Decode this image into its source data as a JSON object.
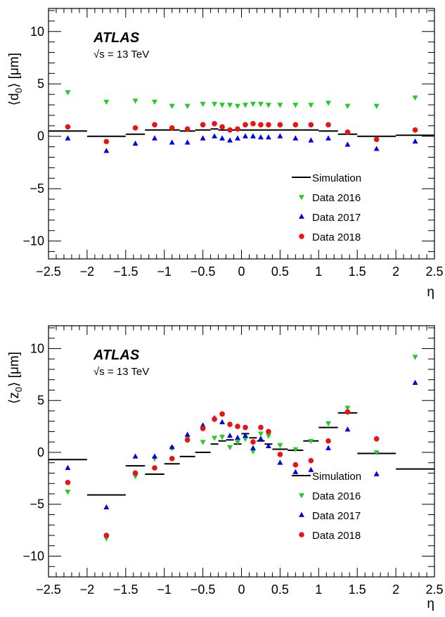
{
  "chart_data": [
    {
      "type": "scatter",
      "xlabel": "η",
      "ylabel_main": "⟨d",
      "ylabel_sub": "0",
      "ylabel_tail": "⟩ [μm]",
      "xlim": [
        -2.5,
        2.5
      ],
      "ylim": [
        -11.7,
        12.2
      ],
      "xticks": [
        -2.5,
        -2,
        -1.5,
        -1,
        -0.5,
        0,
        0.5,
        1,
        1.5,
        2,
        2.5
      ],
      "xtick_labels": [
        "−2.5",
        "−2",
        "−1.5",
        "−1",
        "−0.5",
        "0",
        "0.5",
        "1",
        "1.5",
        "2",
        "2.5"
      ],
      "yticks": [
        -10,
        -5,
        0,
        5,
        10
      ],
      "ytick_labels": [
        "−10",
        "−5",
        "0",
        "5",
        "10"
      ],
      "atlas_label": "ATLAS",
      "energy_label": "√s = 13 TeV",
      "legend_position": "bottom-right",
      "legend": [
        "Simulation",
        "Data 2016",
        "Data 2017",
        "Data 2018"
      ],
      "simulation": [
        {
          "x1": -2.5,
          "x2": -2.0,
          "y": 0.5
        },
        {
          "x1": -2.0,
          "x2": -1.5,
          "y": 0.0
        },
        {
          "x1": -1.5,
          "x2": -1.25,
          "y": 0.2
        },
        {
          "x1": -1.25,
          "x2": -1.0,
          "y": 0.6
        },
        {
          "x1": -1.0,
          "x2": -0.8,
          "y": 0.6
        },
        {
          "x1": -0.8,
          "x2": -0.6,
          "y": 0.5
        },
        {
          "x1": -0.6,
          "x2": -0.4,
          "y": 0.6
        },
        {
          "x1": -0.4,
          "x2": -0.3,
          "y": 0.7
        },
        {
          "x1": -0.3,
          "x2": -0.2,
          "y": 0.6
        },
        {
          "x1": -0.2,
          "x2": -0.1,
          "y": 0.6
        },
        {
          "x1": -0.1,
          "x2": 0.0,
          "y": 0.6
        },
        {
          "x1": 0.0,
          "x2": 0.1,
          "y": 0.6
        },
        {
          "x1": 0.1,
          "x2": 0.2,
          "y": 0.6
        },
        {
          "x1": 0.2,
          "x2": 0.3,
          "y": 0.6
        },
        {
          "x1": 0.3,
          "x2": 0.4,
          "y": 0.6
        },
        {
          "x1": 0.4,
          "x2": 0.6,
          "y": 0.6
        },
        {
          "x1": 0.6,
          "x2": 0.8,
          "y": 0.6
        },
        {
          "x1": 0.8,
          "x2": 1.0,
          "y": 0.6
        },
        {
          "x1": 1.0,
          "x2": 1.25,
          "y": 0.5
        },
        {
          "x1": 1.25,
          "x2": 1.5,
          "y": 0.2
        },
        {
          "x1": 1.5,
          "x2": 2.0,
          "y": 0.0
        },
        {
          "x1": 2.0,
          "x2": 2.5,
          "y": 0.1
        }
      ],
      "series": [
        {
          "name": "Data 2016",
          "marker": "triangle-down",
          "color": "#22cc22",
          "x": [
            -2.25,
            -1.75,
            -1.375,
            -1.125,
            -0.9,
            -0.7,
            -0.5,
            -0.35,
            -0.25,
            -0.15,
            -0.05,
            0.05,
            0.15,
            0.25,
            0.35,
            0.5,
            0.7,
            0.9,
            1.125,
            1.375,
            1.75,
            2.25
          ],
          "y": [
            4.2,
            3.3,
            3.4,
            3.3,
            2.9,
            2.9,
            3.1,
            3.1,
            3.0,
            3.0,
            2.9,
            3.0,
            3.1,
            3.1,
            3.0,
            3.0,
            3.0,
            3.0,
            3.2,
            2.9,
            2.9,
            3.7
          ]
        },
        {
          "name": "Data 2017",
          "marker": "triangle-up",
          "color": "#0000ee",
          "x": [
            -2.25,
            -1.75,
            -1.375,
            -1.125,
            -0.9,
            -0.7,
            -0.5,
            -0.35,
            -0.25,
            -0.15,
            -0.05,
            0.05,
            0.15,
            0.25,
            0.35,
            0.5,
            0.7,
            0.9,
            1.125,
            1.375,
            1.75,
            2.25
          ],
          "y": [
            -0.2,
            -1.4,
            -0.7,
            -0.2,
            -0.6,
            -0.6,
            -0.2,
            0.0,
            -0.2,
            -0.4,
            -0.2,
            0.0,
            0.0,
            -0.1,
            -0.1,
            0.0,
            -0.2,
            -0.4,
            -0.2,
            -0.8,
            -1.2,
            -0.5
          ]
        },
        {
          "name": "Data 2018",
          "marker": "circle",
          "color": "#ee1111",
          "x": [
            -2.25,
            -1.75,
            -1.375,
            -1.125,
            -0.9,
            -0.7,
            -0.5,
            -0.35,
            -0.25,
            -0.15,
            -0.05,
            0.05,
            0.15,
            0.25,
            0.35,
            0.5,
            0.7,
            0.9,
            1.125,
            1.375,
            1.75,
            2.25
          ],
          "y": [
            0.9,
            -0.5,
            0.8,
            1.1,
            0.8,
            0.7,
            1.1,
            1.2,
            0.9,
            0.6,
            0.7,
            1.1,
            1.2,
            1.1,
            1.1,
            1.1,
            1.1,
            1.1,
            1.1,
            0.4,
            -0.3,
            0.6
          ]
        }
      ]
    },
    {
      "type": "scatter",
      "xlabel": "η",
      "ylabel_main": "⟨z",
      "ylabel_sub": "0",
      "ylabel_tail": "⟩ [μm]",
      "xlim": [
        -2.5,
        2.5
      ],
      "ylim": [
        -12.0,
        12.2
      ],
      "xticks": [
        -2.5,
        -2,
        -1.5,
        -1,
        -0.5,
        0,
        0.5,
        1,
        1.5,
        2,
        2.5
      ],
      "xtick_labels": [
        "−2.5",
        "−2",
        "−1.5",
        "−1",
        "−0.5",
        "0",
        "0.5",
        "1",
        "1.5",
        "2",
        "2.5"
      ],
      "yticks": [
        -10,
        -5,
        0,
        5,
        10
      ],
      "ytick_labels": [
        "−10",
        "−5",
        "0",
        "5",
        "10"
      ],
      "atlas_label": "ATLAS",
      "energy_label": "√s = 13 TeV",
      "legend_position": "bottom-right",
      "legend": [
        "Simulation",
        "Data 2016",
        "Data 2017",
        "Data 2018"
      ],
      "simulation": [
        {
          "x1": -2.5,
          "x2": -2.0,
          "y": -0.7
        },
        {
          "x1": -2.0,
          "x2": -1.5,
          "y": -4.1
        },
        {
          "x1": -1.5,
          "x2": -1.25,
          "y": -1.3
        },
        {
          "x1": -1.25,
          "x2": -1.0,
          "y": -2.1
        },
        {
          "x1": -1.0,
          "x2": -0.8,
          "y": -1.1
        },
        {
          "x1": -0.8,
          "x2": -0.6,
          "y": -0.4
        },
        {
          "x1": -0.6,
          "x2": -0.4,
          "y": 0.0
        },
        {
          "x1": -0.4,
          "x2": -0.3,
          "y": 0.8
        },
        {
          "x1": -0.3,
          "x2": -0.2,
          "y": 1.1
        },
        {
          "x1": -0.2,
          "x2": -0.1,
          "y": 1.2
        },
        {
          "x1": -0.1,
          "x2": 0.0,
          "y": 0.8
        },
        {
          "x1": 0.0,
          "x2": 0.1,
          "y": 1.8
        },
        {
          "x1": 0.1,
          "x2": 0.2,
          "y": 1.4
        },
        {
          "x1": 0.2,
          "x2": 0.3,
          "y": 1.1
        },
        {
          "x1": 0.3,
          "x2": 0.4,
          "y": 0.8
        },
        {
          "x1": 0.4,
          "x2": 0.6,
          "y": 0.3
        },
        {
          "x1": 0.6,
          "x2": 0.8,
          "y": 0.2
        },
        {
          "x1": 0.8,
          "x2": 1.0,
          "y": 1.1
        },
        {
          "x1": 1.0,
          "x2": 1.25,
          "y": 2.4
        },
        {
          "x1": 1.25,
          "x2": 1.5,
          "y": 3.8
        },
        {
          "x1": 1.5,
          "x2": 2.0,
          "y": -0.1
        },
        {
          "x1": 2.0,
          "x2": 2.5,
          "y": -1.6
        }
      ],
      "series": [
        {
          "name": "Data 2016",
          "marker": "triangle-down",
          "color": "#22cc22",
          "x": [
            -2.25,
            -1.75,
            -1.375,
            -1.125,
            -0.9,
            -0.7,
            -0.5,
            -0.35,
            -0.25,
            -0.15,
            -0.05,
            0.05,
            0.15,
            0.25,
            0.35,
            0.5,
            0.7,
            0.9,
            1.125,
            1.375,
            1.75,
            2.25
          ],
          "y": [
            -3.8,
            -8.3,
            -2.3,
            -0.6,
            0.4,
            1.4,
            1.0,
            1.4,
            1.5,
            0.5,
            1.0,
            1.3,
            0.1,
            1.8,
            1.6,
            0.7,
            0.3,
            1.1,
            2.8,
            4.3,
            0.0,
            9.2
          ]
        },
        {
          "name": "Data 2017",
          "marker": "triangle-up",
          "color": "#0000ee",
          "x": [
            -2.25,
            -1.75,
            -1.375,
            -1.125,
            -0.9,
            -0.7,
            -0.5,
            -0.35,
            -0.25,
            -0.15,
            -0.05,
            0.05,
            0.15,
            0.25,
            0.35,
            0.5,
            0.7,
            0.9,
            1.125,
            1.375,
            1.75,
            2.25
          ],
          "y": [
            -1.5,
            -5.3,
            -0.4,
            -0.4,
            0.5,
            1.7,
            2.6,
            3.3,
            2.9,
            1.6,
            1.4,
            1.6,
            0.4,
            1.3,
            0.6,
            -1.0,
            -1.9,
            -1.7,
            0.4,
            2.2,
            -2.1,
            6.7
          ]
        },
        {
          "name": "Data 2018",
          "marker": "circle",
          "color": "#ee1111",
          "x": [
            -2.25,
            -1.75,
            -1.375,
            -1.125,
            -0.9,
            -0.7,
            -0.5,
            -0.35,
            -0.25,
            -0.15,
            -0.05,
            0.05,
            0.15,
            0.25,
            0.35,
            0.5,
            0.7,
            0.9,
            1.125,
            1.375,
            1.75,
            2.25
          ],
          "y": [
            -2.9,
            -8.0,
            -2.0,
            -1.5,
            -0.6,
            1.2,
            2.3,
            3.2,
            3.7,
            2.7,
            2.5,
            2.4,
            1.0,
            2.4,
            2.0,
            -0.2,
            -1.2,
            -0.8,
            1.1,
            3.9,
            1.3,
            null
          ]
        }
      ]
    }
  ]
}
